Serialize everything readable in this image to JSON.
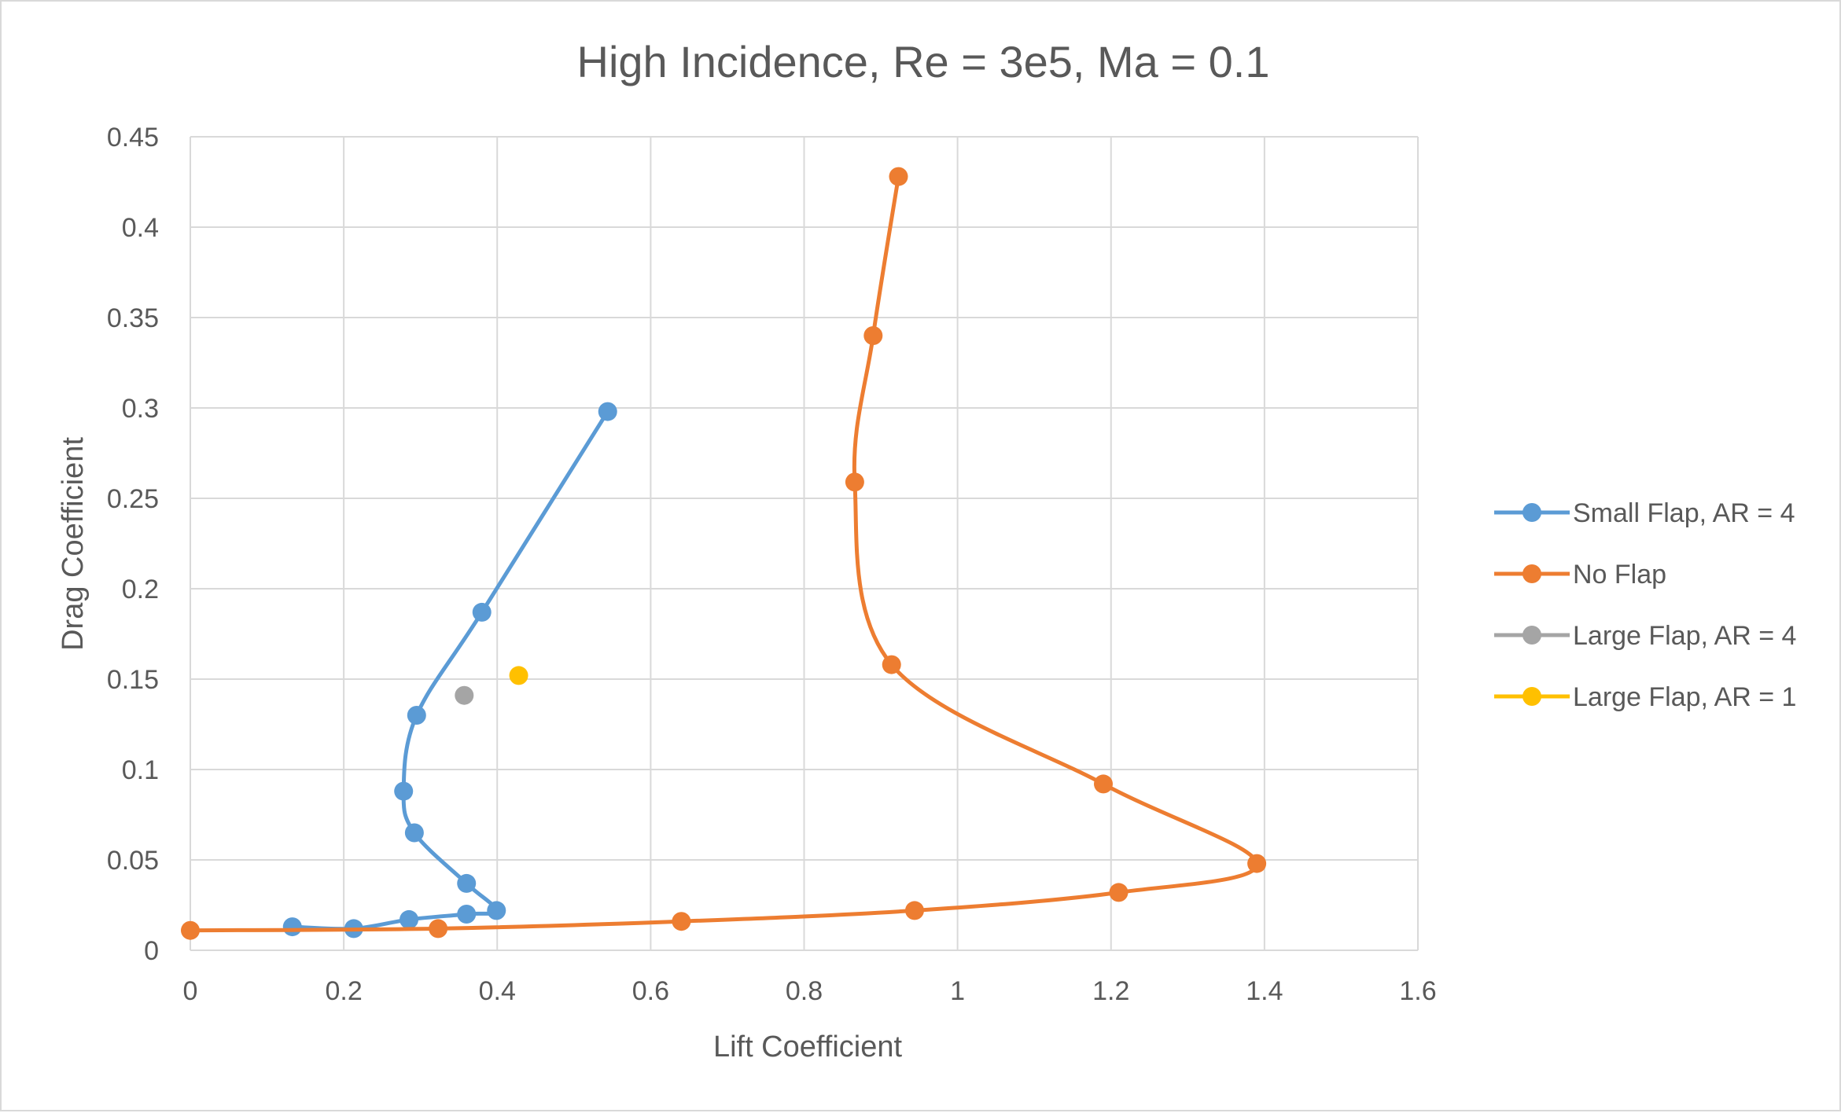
{
  "chart_data": {
    "type": "scatter",
    "title": "High Incidence, Re = 3e5, Ma = 0.1",
    "xlabel": "Lift Coefficient",
    "ylabel": "Drag Coefficient",
    "xlim": [
      0,
      1.6
    ],
    "ylim": [
      0,
      0.45
    ],
    "xticks": [
      0,
      0.2,
      0.4,
      0.6,
      0.8,
      1,
      1.2,
      1.4,
      1.6
    ],
    "xtick_labels": [
      "0",
      "0.2",
      "0.4",
      "0.6",
      "0.8",
      "1",
      "1.2",
      "1.4",
      "1.6"
    ],
    "yticks": [
      0,
      0.05,
      0.1,
      0.15,
      0.2,
      0.25,
      0.3,
      0.35,
      0.4,
      0.45
    ],
    "ytick_labels": [
      "0",
      "0.05",
      "0.1",
      "0.15",
      "0.2",
      "0.25",
      "0.3",
      "0.35",
      "0.4",
      "0.45"
    ],
    "grid": true,
    "legend_position": "right",
    "series": [
      {
        "name": "Small Flap, AR = 4",
        "color": "#5b9bd5",
        "smooth": true,
        "points": [
          [
            0.133,
            0.013
          ],
          [
            0.213,
            0.012
          ],
          [
            0.285,
            0.017
          ],
          [
            0.36,
            0.02
          ],
          [
            0.399,
            0.022
          ],
          [
            0.36,
            0.037
          ],
          [
            0.292,
            0.065
          ],
          [
            0.278,
            0.088
          ],
          [
            0.295,
            0.13
          ],
          [
            0.38,
            0.187
          ],
          [
            0.544,
            0.298
          ]
        ]
      },
      {
        "name": "No Flap",
        "color": "#ed7d31",
        "smooth": true,
        "points": [
          [
            0.0,
            0.011
          ],
          [
            0.323,
            0.012
          ],
          [
            0.64,
            0.016
          ],
          [
            0.944,
            0.022
          ],
          [
            1.21,
            0.032
          ],
          [
            1.39,
            0.048
          ],
          [
            1.19,
            0.092
          ],
          [
            0.914,
            0.158
          ],
          [
            0.866,
            0.259
          ],
          [
            0.89,
            0.34
          ],
          [
            0.923,
            0.428
          ]
        ]
      },
      {
        "name": "Large Flap, AR = 4",
        "color": "#a5a5a5",
        "smooth": true,
        "points": [
          [
            0.357,
            0.141
          ]
        ]
      },
      {
        "name": "Large Flap, AR = 1",
        "color": "#ffc000",
        "smooth": true,
        "points": [
          [
            0.428,
            0.152
          ]
        ]
      }
    ]
  }
}
